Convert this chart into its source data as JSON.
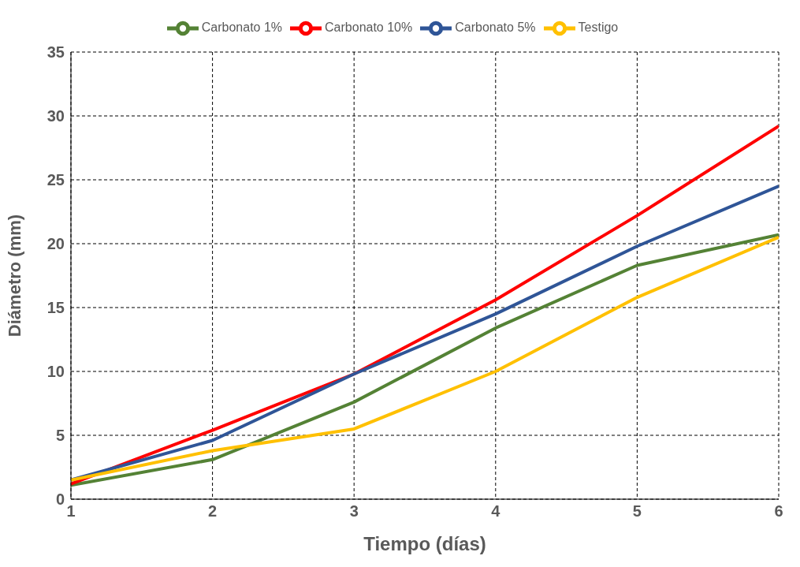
{
  "chart_data": {
    "type": "line",
    "xlabel": "Tiempo (días)",
    "ylabel": "Diámetro (mm)",
    "x": [
      1,
      2,
      3,
      4,
      5,
      6
    ],
    "series": [
      {
        "name": "Carbonato 1%",
        "color": "#548235",
        "values": [
          1.1,
          3.1,
          7.6,
          13.4,
          18.3,
          20.7
        ]
      },
      {
        "name": "Carbonato 10%",
        "color": "#ff0000",
        "values": [
          1.2,
          5.4,
          9.8,
          15.6,
          22.2,
          29.2
        ]
      },
      {
        "name": "Carbonato 5%",
        "color": "#2f5597",
        "values": [
          1.5,
          4.6,
          9.8,
          14.5,
          19.8,
          24.5
        ]
      },
      {
        "name": "Testigo",
        "color": "#ffc000",
        "values": [
          1.5,
          3.8,
          5.5,
          10.0,
          15.8,
          20.5
        ]
      }
    ],
    "xlim": [
      1,
      6
    ],
    "xticks": [
      1,
      2,
      3,
      4,
      5,
      6
    ],
    "ylim": [
      0,
      35
    ],
    "yticks": [
      0,
      5,
      10,
      15,
      20,
      25,
      30,
      35
    ],
    "grid": true,
    "legend": "top",
    "marker": "none",
    "line_style": "solid"
  }
}
